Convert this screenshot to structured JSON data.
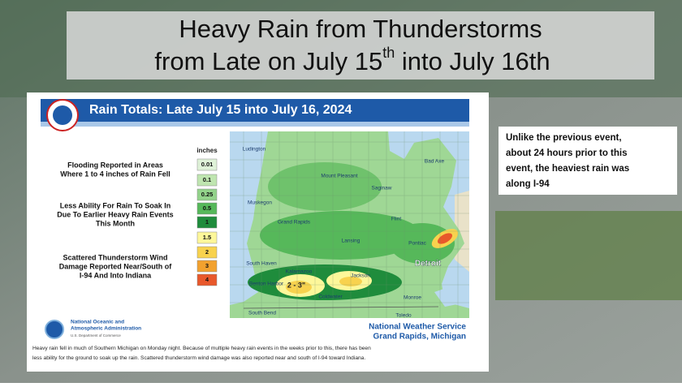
{
  "slide": {
    "title_line1": "Heavy Rain from Thunderstorms",
    "title_line2": {
      "before": "from Late on July 15",
      "sup": "th",
      "after": " into July 16th"
    },
    "side_note": [
      "Unlike the previous event,",
      "about 24 hours prior to this",
      "event, the heaviest rain was",
      "along I-94"
    ]
  },
  "map": {
    "header": "Rain Totals:  Late July 15 into July 16, 2024",
    "notes": [
      [
        "Flooding Reported in Areas",
        "Where 1 to 4 inches of Rain Fell"
      ],
      [
        "Less Ability For Rain To Soak In",
        "Due To Earlier Heavy Rain Events",
        "This Month"
      ],
      [
        "Scattered Thunderstorm Wind",
        "Damage Reported Near/South of",
        "I-94 And Into Indiana"
      ]
    ],
    "legend": {
      "title": "inches",
      "items": [
        {
          "label": "0.01",
          "color": "#dff2d8"
        },
        {
          "label": "0.1",
          "color": "#bfe5b0"
        },
        {
          "label": "0.25",
          "color": "#93d38b"
        },
        {
          "label": "0.5",
          "color": "#56b85a"
        },
        {
          "label": "1",
          "color": "#1f8c3c"
        },
        {
          "label": "1.5",
          "color": "#fdf79a"
        },
        {
          "label": "2",
          "color": "#f8d24e"
        },
        {
          "label": "3",
          "color": "#f2a12e"
        },
        {
          "label": "4",
          "color": "#e8582b"
        }
      ]
    },
    "cities": [
      "Ludington",
      "Mount Pleasant",
      "Bad Axe",
      "Saginaw",
      "Muskegon",
      "Grand Rapids",
      "Flint",
      "Lansing",
      "Pontiac",
      "South Haven",
      "Kalamazoo",
      "Jackson",
      "Detroit",
      "Benton Harbor",
      "Coldwater",
      "Monroe",
      "South Bend",
      "Toledo"
    ],
    "callout": "2 - 3\"",
    "agency": [
      "National Oceanic and",
      "Atmospheric Administration",
      "U.S. Department of Commerce"
    ],
    "office": [
      "National Weather Service",
      "Grand Rapids, Michigan"
    ],
    "caption": [
      "Heavy rain fell in much of Southern Michigan on Monday night. Because of multiple heavy rain events in the weeks prior to this, there has been",
      "less ability for the ground to soak up the rain. Scattered thunderstorm wind damage was also reported near and south of I-94 toward Indiana."
    ]
  }
}
